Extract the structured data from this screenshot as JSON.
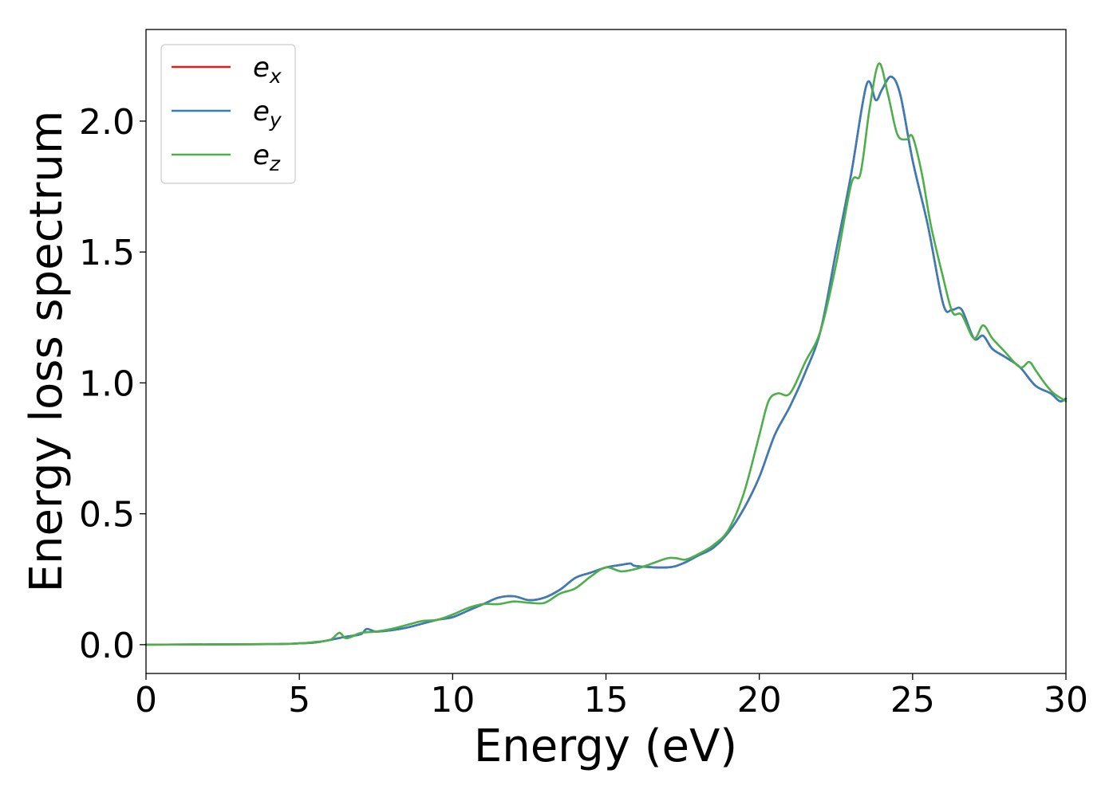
{
  "chart_data": {
    "type": "line",
    "xlabel": "Energy (eV)",
    "ylabel": "Energy loss spectrum",
    "xlim": [
      0,
      30
    ],
    "ylim": [
      -0.11,
      2.35
    ],
    "xticks": [
      0,
      5,
      10,
      15,
      20,
      25,
      30
    ],
    "xtick_labels": [
      "0",
      "5",
      "10",
      "15",
      "20",
      "25",
      "30"
    ],
    "yticks": [
      0.0,
      0.5,
      1.0,
      1.5,
      2.0
    ],
    "ytick_labels": [
      "0.0",
      "0.5",
      "1.0",
      "1.5",
      "2.0"
    ],
    "grid": false,
    "legend_position": "top-left",
    "series": [
      {
        "name": "e",
        "subscript": "x",
        "color": "#e41a1c",
        "x": [
          0,
          4,
          5,
          5.5,
          6,
          6.5,
          7,
          7.2,
          7.5,
          8,
          8.5,
          9,
          9.5,
          10,
          10.5,
          11,
          11.5,
          12,
          12.5,
          13,
          13.5,
          14,
          14.5,
          15,
          15.5,
          15.8,
          16,
          17,
          17.5,
          18,
          18.5,
          19,
          19.5,
          20,
          20.5,
          21,
          21.5,
          22,
          22.5,
          23,
          23.5,
          23.8,
          24,
          24.3,
          24.6,
          25,
          25.5,
          26,
          26.3,
          26.6,
          27,
          27.3,
          27.6,
          28,
          28.5,
          29,
          29.5,
          29.8,
          30
        ],
        "y": [
          0,
          0.002,
          0.005,
          0.008,
          0.018,
          0.03,
          0.04,
          0.06,
          0.05,
          0.055,
          0.065,
          0.08,
          0.095,
          0.105,
          0.13,
          0.155,
          0.18,
          0.185,
          0.17,
          0.18,
          0.21,
          0.255,
          0.275,
          0.295,
          0.305,
          0.31,
          0.3,
          0.295,
          0.31,
          0.34,
          0.37,
          0.43,
          0.52,
          0.64,
          0.8,
          0.91,
          1.04,
          1.2,
          1.5,
          1.8,
          2.14,
          2.08,
          2.12,
          2.17,
          2.1,
          1.85,
          1.6,
          1.3,
          1.28,
          1.28,
          1.17,
          1.18,
          1.13,
          1.1,
          1.06,
          0.99,
          0.96,
          0.93,
          0.94
        ]
      },
      {
        "name": "e",
        "subscript": "y",
        "color": "#377eb8",
        "x": [
          0,
          4,
          5,
          5.5,
          6,
          6.5,
          7,
          7.2,
          7.5,
          8,
          8.5,
          9,
          9.5,
          10,
          10.5,
          11,
          11.5,
          12,
          12.5,
          13,
          13.5,
          14,
          14.5,
          15,
          15.5,
          15.8,
          16,
          17,
          17.5,
          18,
          18.5,
          19,
          19.5,
          20,
          20.5,
          21,
          21.5,
          22,
          22.5,
          23,
          23.5,
          23.8,
          24,
          24.3,
          24.6,
          25,
          25.5,
          26,
          26.3,
          26.6,
          27,
          27.3,
          27.6,
          28,
          28.5,
          29,
          29.5,
          29.8,
          30
        ],
        "y": [
          0,
          0.002,
          0.005,
          0.008,
          0.018,
          0.03,
          0.04,
          0.06,
          0.05,
          0.055,
          0.065,
          0.08,
          0.095,
          0.105,
          0.13,
          0.155,
          0.18,
          0.185,
          0.17,
          0.18,
          0.21,
          0.255,
          0.275,
          0.295,
          0.305,
          0.31,
          0.3,
          0.295,
          0.31,
          0.34,
          0.37,
          0.43,
          0.52,
          0.64,
          0.8,
          0.91,
          1.04,
          1.2,
          1.5,
          1.8,
          2.14,
          2.08,
          2.12,
          2.17,
          2.1,
          1.85,
          1.6,
          1.3,
          1.28,
          1.28,
          1.17,
          1.18,
          1.13,
          1.1,
          1.06,
          0.99,
          0.96,
          0.93,
          0.94
        ]
      },
      {
        "name": "e",
        "subscript": "z",
        "color": "#4daf4a",
        "x": [
          0,
          4,
          5,
          5.5,
          6,
          6.3,
          6.5,
          6.7,
          7,
          7.5,
          8,
          8.5,
          9,
          9.5,
          10,
          10.5,
          11,
          11.5,
          12,
          12.5,
          13,
          13.5,
          14,
          14.5,
          15,
          15.5,
          16,
          16.5,
          17,
          17.3,
          17.6,
          18,
          18.5,
          19,
          19.5,
          20,
          20.3,
          20.6,
          21,
          21.5,
          22,
          22.5,
          23,
          23.3,
          23.6,
          23.9,
          24.2,
          24.5,
          24.8,
          25,
          25.3,
          25.6,
          26,
          26.3,
          26.6,
          27,
          27.3,
          27.6,
          28,
          28.5,
          28.8,
          29,
          29.3,
          29.6,
          30
        ],
        "y": [
          0,
          0.002,
          0.005,
          0.01,
          0.018,
          0.045,
          0.025,
          0.03,
          0.045,
          0.05,
          0.06,
          0.075,
          0.09,
          0.095,
          0.115,
          0.14,
          0.155,
          0.155,
          0.165,
          0.16,
          0.16,
          0.195,
          0.215,
          0.26,
          0.295,
          0.28,
          0.29,
          0.31,
          0.33,
          0.33,
          0.325,
          0.345,
          0.38,
          0.44,
          0.58,
          0.8,
          0.93,
          0.96,
          0.96,
          1.08,
          1.2,
          1.45,
          1.76,
          1.8,
          2.05,
          2.22,
          2.1,
          1.95,
          1.93,
          1.94,
          1.8,
          1.6,
          1.4,
          1.27,
          1.26,
          1.17,
          1.22,
          1.17,
          1.12,
          1.06,
          1.08,
          1.05,
          1.0,
          0.96,
          0.93
        ]
      }
    ]
  }
}
